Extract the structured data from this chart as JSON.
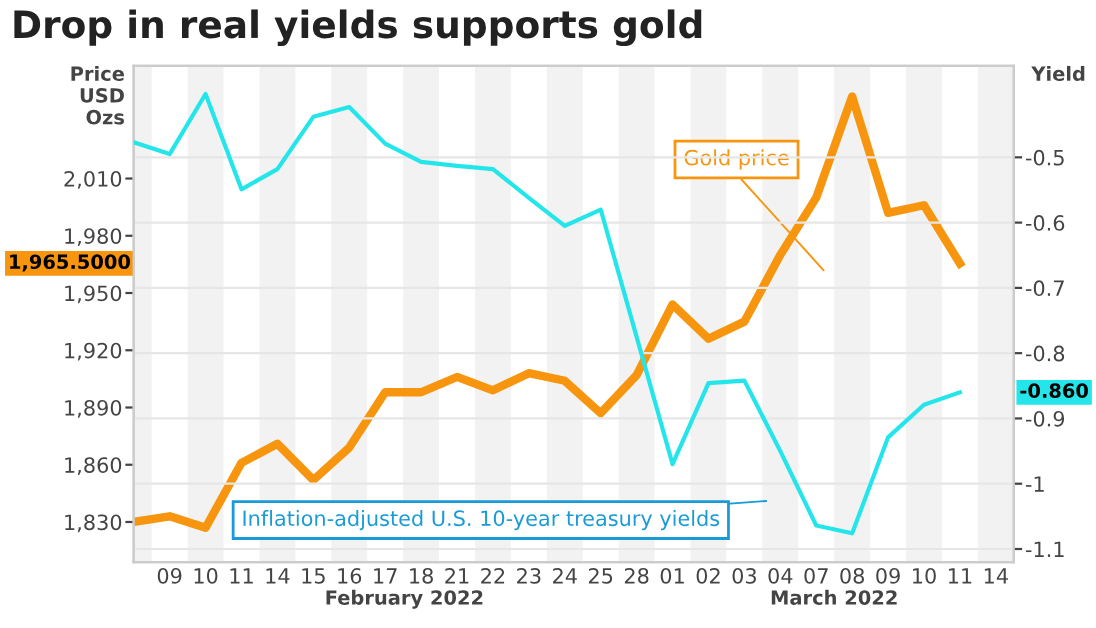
{
  "chart_data": {
    "type": "line",
    "title": "Drop in real yields supports gold",
    "ylabel": "Price\nUSD\nOzs",
    "y2label": "Yield",
    "categories": [
      null,
      "09",
      "10",
      "11",
      "14",
      "15",
      "16",
      "17",
      "18",
      "21",
      "22",
      "23",
      "24",
      "25",
      "28",
      "01",
      "02",
      "03",
      "04",
      "07",
      "08",
      "09",
      "10",
      "11",
      "14"
    ],
    "series": [
      {
        "name": "Gold price",
        "color": "#f7960e",
        "values": [
          1830,
          1833,
          1827,
          1861,
          1871,
          1852,
          1869,
          1898,
          1898,
          1906,
          1899,
          1908,
          1904,
          1887,
          1907,
          1944,
          1926,
          1935,
          1970,
          2000,
          2053,
          1992,
          1996,
          1965.5,
          null
        ]
      },
      {
        "name": "Inflation-adjusted U.S. 10-year treasury yields",
        "color": "#24e6ea",
        "axis": "y2",
        "values": [
          -0.477,
          -0.495,
          -0.403,
          -0.549,
          -0.518,
          -0.438,
          -0.423,
          -0.479,
          -0.507,
          -0.513,
          -0.518,
          -0.562,
          -0.605,
          -0.58,
          -0.775,
          -0.97,
          -0.846,
          -0.842,
          -0.95,
          -1.064,
          -1.076,
          -0.929,
          -0.879,
          -0.86,
          null
        ]
      }
    ],
    "ylim": [
      1809,
      2069
    ],
    "yticks": [
      {
        "value": 1830,
        "label": "1,830"
      },
      {
        "value": 1860,
        "label": "1,860"
      },
      {
        "value": 1890,
        "label": "1,890"
      },
      {
        "value": 1920,
        "label": "1,920"
      },
      {
        "value": 1950,
        "label": "1,950"
      },
      {
        "value": 1980,
        "label": "1,980"
      },
      {
        "value": 2010,
        "label": "2,010"
      }
    ],
    "y2lim": [
      -1.12,
      -0.36
    ],
    "y2ticks": [
      {
        "value": -1.1,
        "label": "-1.1"
      },
      {
        "value": -1.0,
        "label": "-1"
      },
      {
        "value": -0.9,
        "label": "-0.9"
      },
      {
        "value": -0.8,
        "label": "-0.8"
      },
      {
        "value": -0.7,
        "label": "-0.7"
      },
      {
        "value": -0.6,
        "label": "-0.6"
      },
      {
        "value": -0.5,
        "label": "-0.5"
      }
    ],
    "grid": "y",
    "legend": false,
    "annotations": [
      "1,965.5000",
      "-0.860",
      "February 2022",
      "March 2022"
    ]
  }
}
